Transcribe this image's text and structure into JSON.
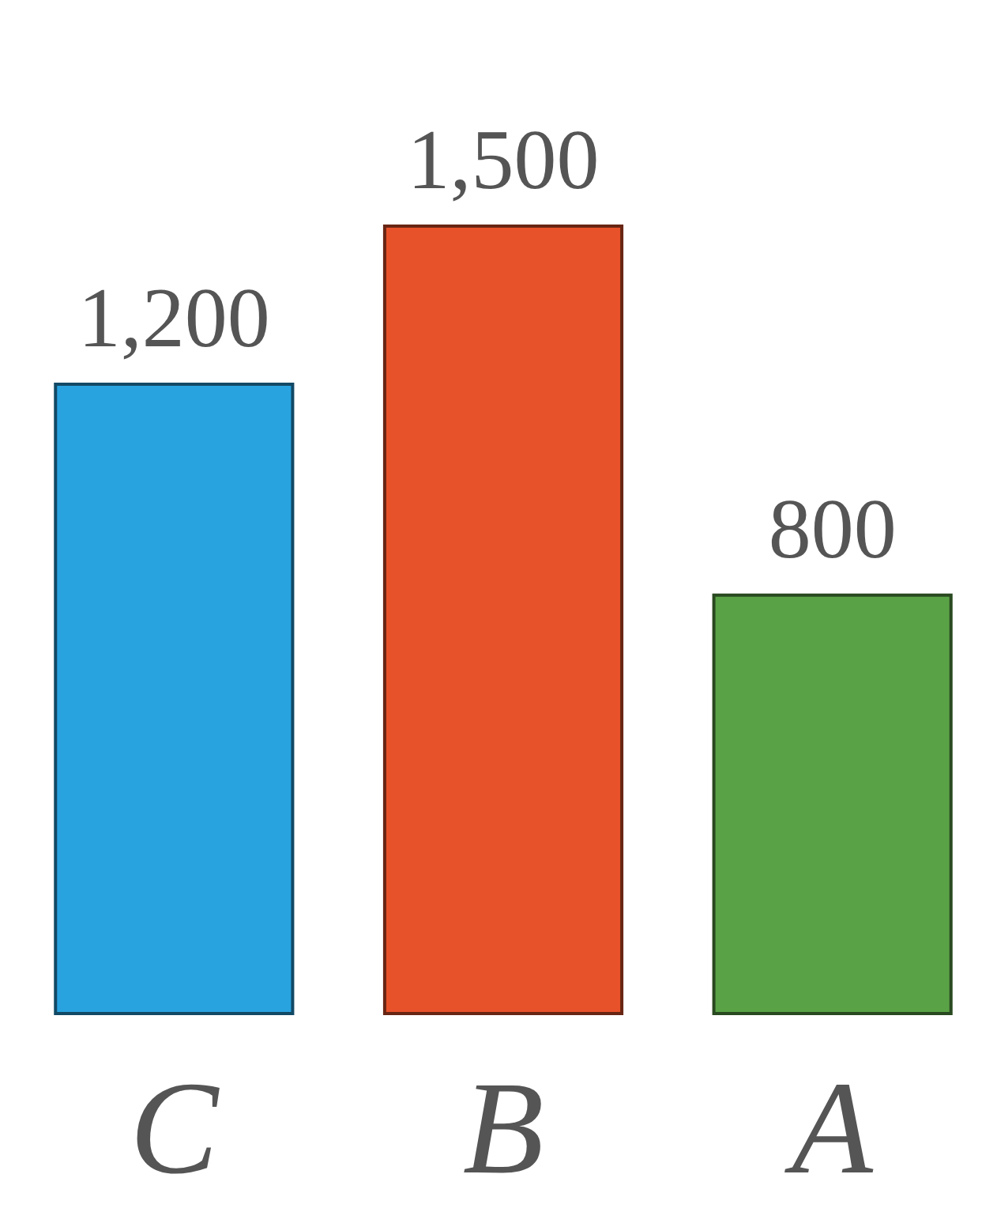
{
  "chart_data": {
    "type": "bar",
    "categories": [
      "C",
      "B",
      "A"
    ],
    "values": [
      1200,
      1500,
      800
    ],
    "value_labels": [
      "1,200",
      "1,500",
      "800"
    ],
    "colors": [
      "#29a3e0",
      "#e8522a",
      "#5aa246"
    ],
    "tick_labels": "x"
  }
}
